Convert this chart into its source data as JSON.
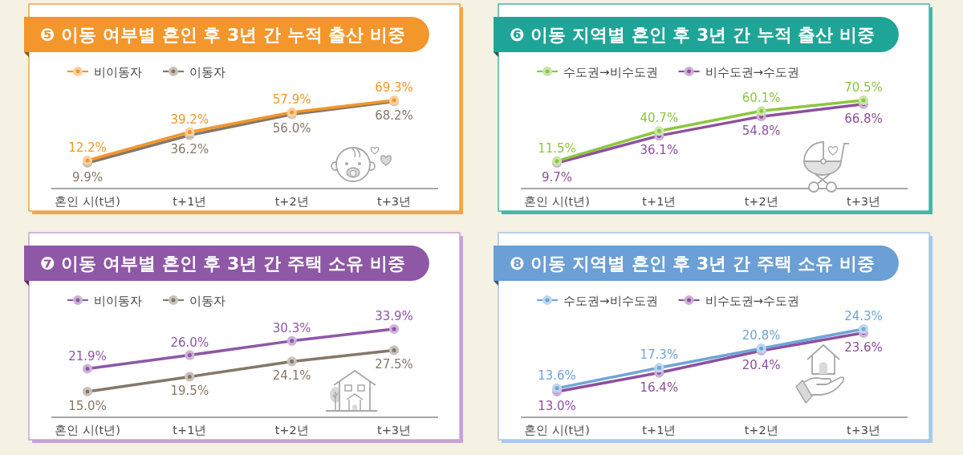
{
  "chart_data": [
    {
      "type": "line",
      "title": "❺ 이동 여부별 혼인 후 3년 간 누적 출산 비중",
      "categories": [
        "혼인 시(t년)",
        "t+1년",
        "t+2년",
        "t+3년"
      ],
      "series": [
        {
          "name": "비이동자",
          "color": "#f3962b",
          "values": [
            12.2,
            39.2,
            57.9,
            69.3
          ],
          "value_labels": [
            "12.2%",
            "39.2%",
            "57.9%",
            "69.3%"
          ]
        },
        {
          "name": "이동자",
          "color": "#857868",
          "values": [
            9.9,
            36.2,
            56.0,
            68.2
          ],
          "value_labels": [
            "9.9%",
            "36.2%",
            "56.0%",
            "68.2%"
          ]
        }
      ],
      "legend": "top left",
      "marker": "circle",
      "line_style": "solid",
      "grid": false
    },
    {
      "type": "line",
      "title": "❻ 이동 지역별 혼인 후 3년 간 누적 출산 비중",
      "categories": [
        "혼인 시(t년)",
        "t+1년",
        "t+2년",
        "t+3년"
      ],
      "series": [
        {
          "name": "수도권→비수도권",
          "color": "#8cc63f",
          "values": [
            11.5,
            40.7,
            60.1,
            70.5
          ],
          "value_labels": [
            "11.5%",
            "40.7%",
            "60.1%",
            "70.5%"
          ]
        },
        {
          "name": "비수도권→수도권",
          "color": "#8e4f9f",
          "values": [
            9.7,
            36.1,
            54.8,
            66.8
          ],
          "value_labels": [
            "9.7%",
            "36.1%",
            "54.8%",
            "66.8%"
          ]
        }
      ],
      "legend": "top left",
      "marker": "circle",
      "line_style": "solid",
      "grid": false
    },
    {
      "type": "line",
      "title": "❼ 이동 여부별 혼인 후 3년 간 주택 소유 비중",
      "categories": [
        "혼인 시(t년)",
        "t+1년",
        "t+2년",
        "t+3년"
      ],
      "series": [
        {
          "name": "비이동자",
          "color": "#8e57a6",
          "values": [
            21.9,
            26.0,
            30.3,
            33.9
          ],
          "value_labels": [
            "21.9%",
            "26.0%",
            "30.3%",
            "33.9%"
          ]
        },
        {
          "name": "이동자",
          "color": "#857868",
          "values": [
            15.0,
            19.5,
            24.1,
            27.5
          ],
          "value_labels": [
            "15.0%",
            "19.5%",
            "24.1%",
            "27.5%"
          ]
        }
      ],
      "legend": "top left",
      "marker": "circle",
      "line_style": "solid",
      "grid": false
    },
    {
      "type": "line",
      "title": "❽ 이동 지역별 혼인 후 3년 간 주택 소유 비중",
      "categories": [
        "혼인 시(t년)",
        "t+1년",
        "t+2년",
        "t+3년"
      ],
      "series": [
        {
          "name": "수도권→비수도권",
          "color": "#6fa5d9",
          "values": [
            13.6,
            17.3,
            20.8,
            24.3
          ],
          "value_labels": [
            "13.6%",
            "17.3%",
            "20.8%",
            "24.3%"
          ]
        },
        {
          "name": "비수도권→수도권",
          "color": "#8e4f9f",
          "values": [
            13.0,
            16.4,
            20.4,
            23.6
          ],
          "value_labels": [
            "13.0%",
            "16.4%",
            "20.4%",
            "23.6%"
          ]
        }
      ],
      "legend": "top left",
      "marker": "circle",
      "line_style": "solid",
      "grid": false
    }
  ]
}
